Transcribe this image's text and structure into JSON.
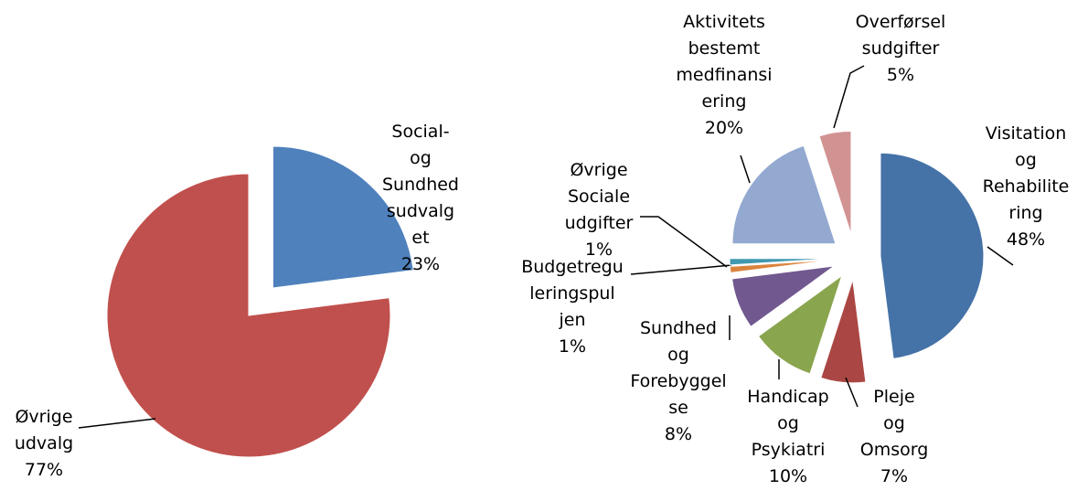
{
  "chart_data": [
    {
      "type": "pie",
      "categories": [
        "Social- og Sundhedsudvalget",
        "Øvrige udvalg"
      ],
      "values": [
        23,
        77
      ],
      "value_labels": [
        "23%",
        "77%"
      ],
      "colors": [
        "#4f81bd",
        "#c0504d"
      ]
    },
    {
      "type": "pie",
      "categories": [
        "Visitation og Rehabilitering",
        "Pleje og Omsorg",
        "Handicap og Psykiatri",
        "Sundhed og Forebyggelse",
        "Budgetreguleringspuljen",
        "Øvrige Sociale udgifter",
        "Aktivitetsbestemt medfinansiering",
        "Overførselsudgifter"
      ],
      "values": [
        48,
        7,
        10,
        8,
        1,
        1,
        20,
        5
      ],
      "value_labels": [
        "48%",
        "7%",
        "10%",
        "8%",
        "1%",
        "1%",
        "20%",
        "5%"
      ],
      "colors": [
        "#4572a7",
        "#aa4643",
        "#89a54e",
        "#71588f",
        "#db843d",
        "#4198af",
        "#93a9cf",
        "#d19392"
      ]
    }
  ]
}
